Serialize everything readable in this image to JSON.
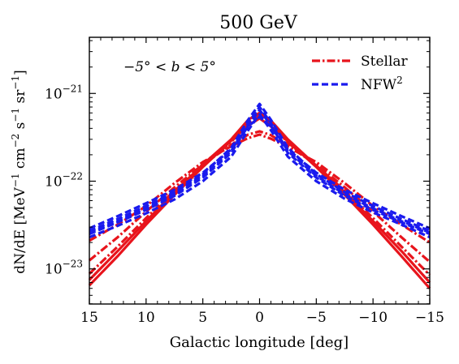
{
  "chart_data": {
    "type": "line",
    "title": "500 GeV",
    "xlabel": "Galactic longitude [deg]",
    "ylabel": "dN/dE [MeV",
    "ylabel_units": [
      "−1",
      " cm",
      "−2",
      " s",
      "−1",
      " sr",
      "−1",
      "]"
    ],
    "xlim": [
      15,
      -15
    ],
    "ylim_log10": [
      -23.4,
      -20.36
    ],
    "x_scale": "linear",
    "y_scale": "log",
    "x_ticks": [
      15,
      10,
      5,
      0,
      -5,
      -10,
      -15
    ],
    "x_tick_labels": [
      "15",
      "10",
      "5",
      "0",
      "−5",
      "−10",
      "−15"
    ],
    "y_tick_labels": [
      {
        "base": "10",
        "exp": "−21",
        "value": 1e-21
      },
      {
        "base": "10",
        "exp": "−22",
        "value": 1e-22
      },
      {
        "base": "10",
        "exp": "−23",
        "value": 1e-23
      }
    ],
    "annotation": "−5° < b < 5°",
    "legend_position": "top-right",
    "legend": [
      {
        "label": "Stellar",
        "color": "#e8141c",
        "dash": "dashdot"
      },
      {
        "label": "NFW",
        "label_sup": "2",
        "color": "#1a1aee",
        "dash": "dashed"
      }
    ],
    "grid": false,
    "x": [
      15,
      12.5,
      10,
      7.5,
      5,
      2.5,
      1,
      0,
      -1,
      -2.5,
      -5,
      -7.5,
      -10,
      -12.5,
      -15
    ],
    "series": [
      {
        "group": "Stellar",
        "style": "solid",
        "color": "#e8141c",
        "values": [
          6.5e-24,
          1.4e-23,
          3.2e-23,
          7e-23,
          1.45e-22,
          2.9e-22,
          4.3e-22,
          5.2e-22,
          4.2e-22,
          2.85e-22,
          1.45e-22,
          7e-23,
          3.2e-23,
          1.4e-23,
          6e-24
        ]
      },
      {
        "group": "Stellar",
        "style": "solid",
        "color": "#e8141c",
        "values": [
          7.5e-24,
          1.6e-23,
          3.5e-23,
          7.5e-23,
          1.55e-22,
          3e-22,
          5e-22,
          6e-22,
          4.9e-22,
          3e-22,
          1.5e-22,
          7.5e-23,
          3.5e-23,
          1.6e-23,
          7e-24
        ]
      },
      {
        "group": "Stellar",
        "style": "dashdot",
        "color": "#e8141c",
        "values": [
          8.8e-24,
          1.8e-23,
          3.8e-23,
          7.8e-23,
          1.5e-22,
          2.8e-22,
          4.6e-22,
          5.6e-22,
          4.5e-22,
          2.75e-22,
          1.5e-22,
          7.8e-23,
          3.8e-23,
          1.8e-23,
          8.5e-24
        ]
      },
      {
        "group": "Stellar",
        "style": "dashdot",
        "color": "#e8141c",
        "values": [
          1.25e-23,
          2.3e-23,
          4.5e-23,
          8.5e-23,
          1.55e-22,
          2.6e-22,
          3.4e-22,
          3.7e-22,
          3.35e-22,
          2.55e-22,
          1.55e-22,
          8.5e-23,
          4.5e-23,
          2.3e-23,
          1.2e-23
        ]
      },
      {
        "group": "Stellar",
        "style": "dashdot",
        "color": "#e8141c",
        "values": [
          2.1e-23,
          3.2e-23,
          5.2e-23,
          9.5e-23,
          1.65e-22,
          2.5e-22,
          3.1e-22,
          3.4e-22,
          3.05e-22,
          2.45e-22,
          1.65e-22,
          9.5e-23,
          5.2e-23,
          3.2e-23,
          2e-23
        ]
      },
      {
        "group": "NFW",
        "style": "dashed",
        "color": "#1a1aee",
        "values": [
          2.3e-23,
          3.1e-23,
          4.3e-23,
          6.2e-23,
          1e-22,
          1.9e-22,
          3.8e-22,
          5.8e-22,
          3.8e-22,
          1.9e-22,
          1e-22,
          6.3e-23,
          4.4e-23,
          3.2e-23,
          2.3e-23
        ]
      },
      {
        "group": "NFW",
        "style": "dashed",
        "color": "#1a1aee",
        "values": [
          2.5e-23,
          3.4e-23,
          4.7e-23,
          6.8e-23,
          1.1e-22,
          2.1e-22,
          4.3e-22,
          6.5e-22,
          4.3e-22,
          2.1e-22,
          1.1e-22,
          6.8e-23,
          4.7e-23,
          3.4e-23,
          2.5e-23
        ]
      },
      {
        "group": "NFW",
        "style": "dashed",
        "color": "#1a1aee",
        "values": [
          2.7e-23,
          3.7e-23,
          5.2e-23,
          7.5e-23,
          1.2e-22,
          2.4e-22,
          5e-22,
          7.6e-22,
          5e-22,
          2.4e-22,
          1.2e-22,
          7.5e-23,
          5.2e-23,
          3.7e-23,
          2.7e-23
        ]
      },
      {
        "group": "NFW",
        "style": "dashed",
        "color": "#1a1aee",
        "values": [
          2.9e-23,
          4e-23,
          5.6e-23,
          8e-23,
          1.25e-22,
          2.3e-22,
          4.2e-22,
          5.4e-22,
          4.2e-22,
          2.3e-22,
          1.25e-22,
          8e-23,
          5.6e-23,
          4e-23,
          2.9e-23
        ]
      },
      {
        "group": "NFW",
        "style": "dashed",
        "color": "#1a1aee",
        "values": [
          2.6e-23,
          3.5e-23,
          4.9e-23,
          7.1e-23,
          1.15e-22,
          2.2e-22,
          4.6e-22,
          7e-22,
          4.6e-22,
          2.2e-22,
          1.15e-22,
          7.1e-23,
          4.9e-23,
          3.5e-23,
          2.6e-23
        ]
      }
    ]
  }
}
